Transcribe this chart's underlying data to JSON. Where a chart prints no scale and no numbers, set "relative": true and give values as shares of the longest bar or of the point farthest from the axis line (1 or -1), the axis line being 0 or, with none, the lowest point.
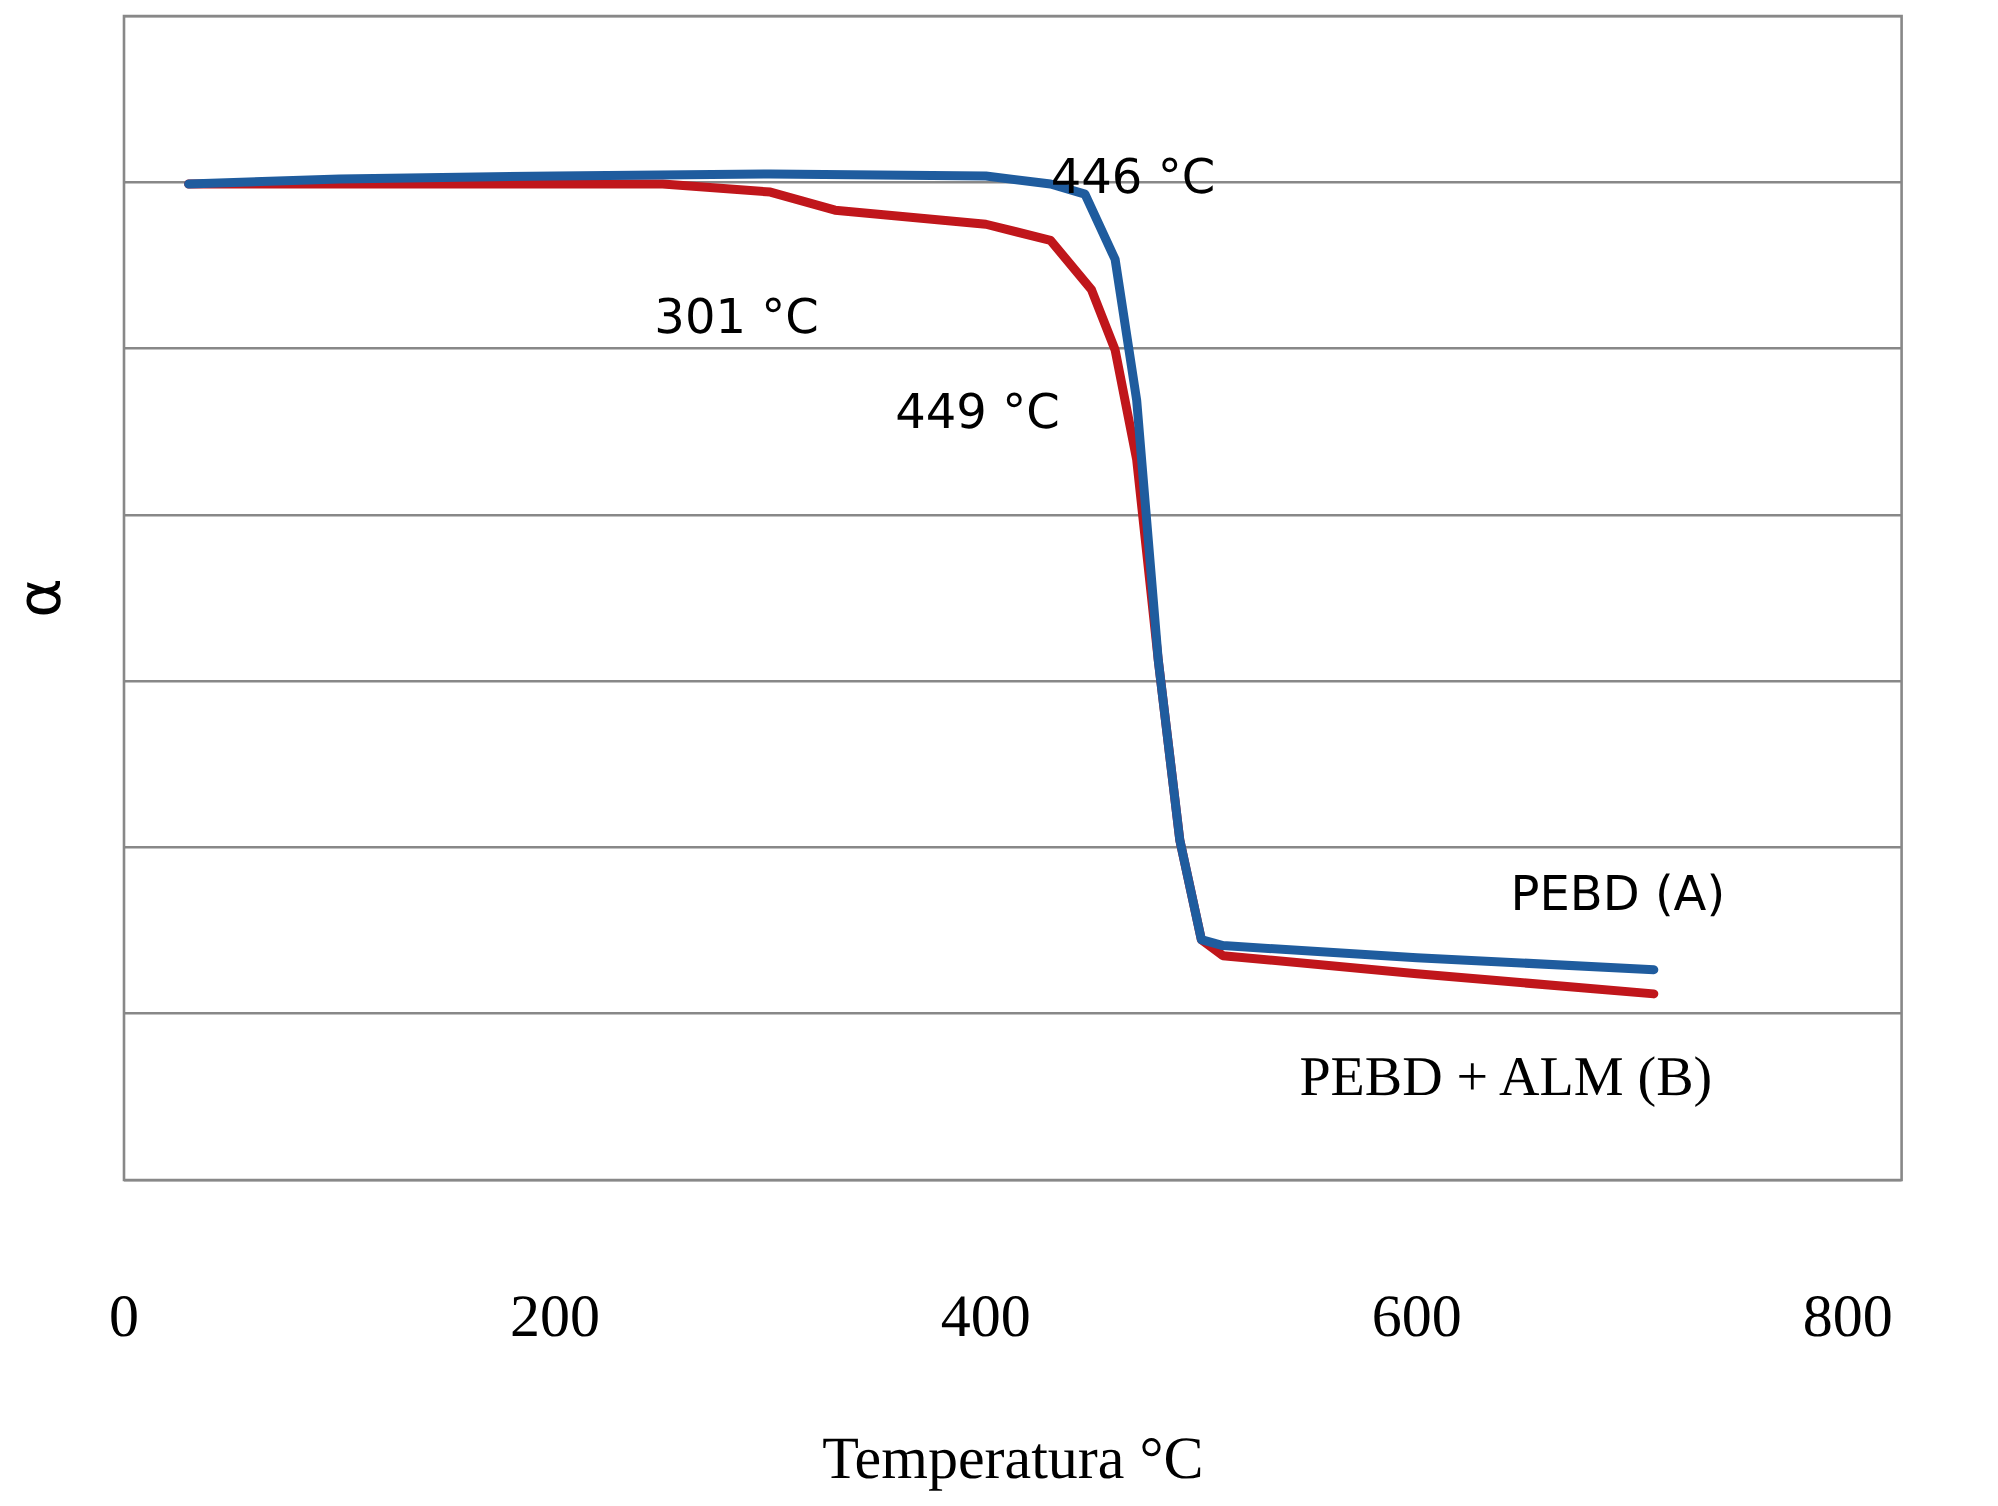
{
  "chart_data": {
    "type": "line",
    "relative": true,
    "xlabel": "Temperatura °C",
    "ylabel": "α",
    "xlim": [
      0,
      825
    ],
    "xticks": [
      0,
      200,
      400,
      600,
      800
    ],
    "grid": "y",
    "legend": false,
    "marker": "none",
    "line_style": "solid",
    "series": [
      {
        "name": "PEBD (A)",
        "color": "#1f5c9e",
        "x": [
          30,
          100,
          200,
          300,
          400,
          430,
          446,
          460,
          470,
          480,
          490,
          500,
          510,
          600,
          710
        ],
        "values": [
          0.99,
          0.995,
          0.998,
          1.0,
          0.998,
          0.99,
          0.98,
          0.915,
          0.775,
          0.517,
          0.338,
          0.239,
          0.233,
          0.221,
          0.209
        ]
      },
      {
        "name": "PEBD + ALM (B)",
        "color": "#c0161b",
        "x": [
          30,
          100,
          200,
          250,
          300,
          330,
          400,
          430,
          449,
          460,
          470,
          480,
          490,
          500,
          510,
          600,
          710
        ],
        "values": [
          0.99,
          0.99,
          0.99,
          0.99,
          0.982,
          0.964,
          0.95,
          0.934,
          0.885,
          0.825,
          0.716,
          0.517,
          0.338,
          0.239,
          0.223,
          0.205,
          0.185
        ]
      }
    ],
    "annotations": [
      {
        "text": "446 °C",
        "x": 446,
        "y": 0.98
      },
      {
        "text": "301 °C",
        "x": 301,
        "y": 0.982
      },
      {
        "text": "449 °C",
        "x": 449,
        "y": 0.885
      }
    ]
  }
}
